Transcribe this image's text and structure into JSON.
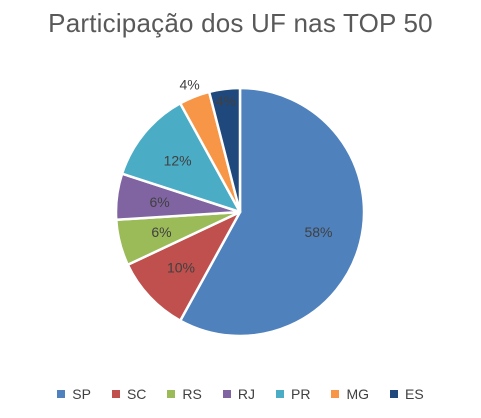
{
  "chart_data": {
    "type": "pie",
    "title": "Participação dos UF nas TOP 50",
    "categories": [
      "SP",
      "SC",
      "RS",
      "RJ",
      "PR",
      "MG",
      "ES"
    ],
    "values": [
      58,
      10,
      6,
      6,
      12,
      4,
      4
    ],
    "labels": [
      "58%",
      "10%",
      "6%",
      "6%",
      "12%",
      "4%",
      "4%"
    ],
    "colors": [
      "#4F81BD",
      "#C0504D",
      "#9BBB59",
      "#8064A2",
      "#4BACC6",
      "#F79646",
      "#1F497D"
    ],
    "legend_position": "bottom"
  }
}
